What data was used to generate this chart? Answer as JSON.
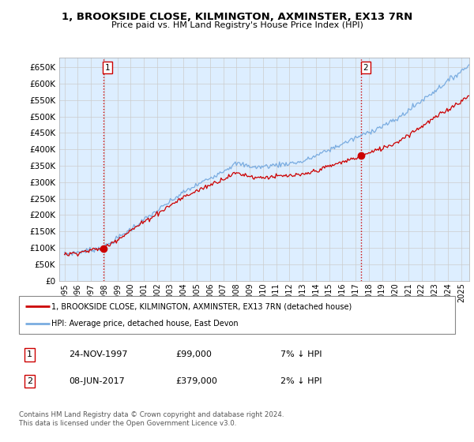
{
  "title": "1, BROOKSIDE CLOSE, KILMINGTON, AXMINSTER, EX13 7RN",
  "subtitle": "Price paid vs. HM Land Registry's House Price Index (HPI)",
  "legend_property": "1, BROOKSIDE CLOSE, KILMINGTON, AXMINSTER, EX13 7RN (detached house)",
  "legend_hpi": "HPI: Average price, detached house, East Devon",
  "footnote1": "Contains HM Land Registry data © Crown copyright and database right 2024.",
  "footnote2": "This data is licensed under the Open Government Licence v3.0.",
  "table_row1": [
    "1",
    "24-NOV-1997",
    "£99,000",
    "7% ↓ HPI"
  ],
  "table_row2": [
    "2",
    "08-JUN-2017",
    "£379,000",
    "2% ↓ HPI"
  ],
  "hpi_color": "#7aace0",
  "price_color": "#cc0000",
  "dashed_color": "#cc0000",
  "sale1_yr": 1997.917,
  "sale1_price": 99000,
  "sale2_yr": 2017.458,
  "sale2_price": 379000,
  "ylim": [
    0,
    680000
  ],
  "yticks": [
    0,
    50000,
    100000,
    150000,
    200000,
    250000,
    300000,
    350000,
    400000,
    450000,
    500000,
    550000,
    600000,
    650000
  ],
  "xlim_lo": 1994.6,
  "xlim_hi": 2025.6,
  "grid_color": "#cccccc",
  "plot_bg": "#ddeeff"
}
